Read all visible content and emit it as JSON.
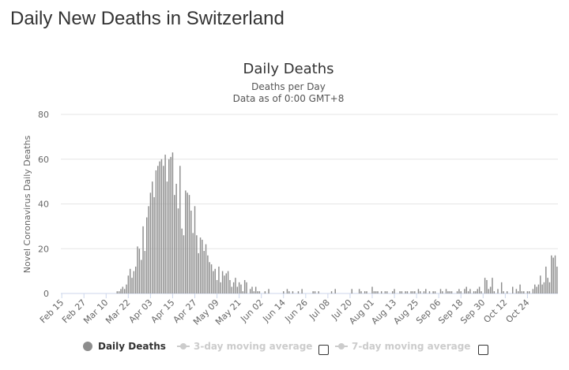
{
  "page": {
    "heading": "Daily New Deaths in Switzerland"
  },
  "chart_data": {
    "type": "bar",
    "title": "Daily Deaths",
    "subtitle_lines": [
      "Deaths per Day",
      "Data as of 0:00 GMT+8"
    ],
    "xlabel": "",
    "ylabel": "Novel Coronavirus Daily Deaths",
    "ylim": [
      0,
      80
    ],
    "yticks": [
      0,
      20,
      40,
      60,
      80
    ],
    "grid": true,
    "bar_color": "#8d8d8d",
    "start_date": "Feb 15",
    "xtick_labels": [
      "Feb 15",
      "Feb 27",
      "Mar 10",
      "Mar 22",
      "Apr 03",
      "Apr 15",
      "Apr 27",
      "May 09",
      "May 21",
      "Jun 02",
      "Jun 14",
      "Jun 26",
      "Jul 08",
      "Jul 20",
      "Aug 01",
      "Aug 13",
      "Aug 25",
      "Sep 06",
      "Sep 18",
      "Sep 30",
      "Oct 12",
      "Oct 24"
    ],
    "series": [
      {
        "name": "Daily Deaths",
        "values": [
          0,
          0,
          0,
          0,
          0,
          0,
          0,
          0,
          0,
          0,
          0,
          0,
          0,
          0,
          0,
          0,
          0,
          0,
          0,
          0,
          0,
          0,
          0,
          0,
          0,
          0,
          0,
          0,
          0,
          0,
          1,
          1,
          2,
          3,
          2,
          4,
          8,
          11,
          7,
          10,
          12,
          21,
          20,
          15,
          30,
          19,
          34,
          39,
          45,
          50,
          43,
          55,
          57,
          59,
          60,
          57,
          62,
          50,
          60,
          61,
          63,
          44,
          49,
          38,
          57,
          29,
          26,
          46,
          45,
          44,
          37,
          27,
          39,
          26,
          18,
          25,
          24,
          19,
          22,
          17,
          14,
          13,
          10,
          11,
          6,
          12,
          5,
          10,
          8,
          9,
          10,
          6,
          3,
          5,
          7,
          3,
          5,
          4,
          1,
          6,
          5,
          0,
          2,
          3,
          1,
          3,
          1,
          1,
          0,
          0,
          1,
          0,
          2,
          0,
          0,
          0,
          0,
          0,
          0,
          0,
          1,
          0,
          2,
          1,
          0,
          1,
          0,
          0,
          1,
          0,
          2,
          0,
          0,
          0,
          0,
          0,
          1,
          1,
          0,
          1,
          0,
          0,
          0,
          0,
          0,
          0,
          1,
          0,
          2,
          0,
          0,
          0,
          0,
          0,
          0,
          0,
          0,
          2,
          0,
          0,
          0,
          2,
          1,
          0,
          1,
          1,
          0,
          0,
          3,
          1,
          1,
          1,
          0,
          1,
          0,
          1,
          1,
          0,
          0,
          1,
          2,
          0,
          0,
          1,
          1,
          0,
          1,
          1,
          0,
          1,
          1,
          1,
          0,
          2,
          1,
          0,
          1,
          2,
          0,
          1,
          0,
          1,
          1,
          0,
          0,
          2,
          1,
          0,
          2,
          1,
          1,
          1,
          0,
          0,
          1,
          2,
          1,
          0,
          2,
          3,
          1,
          2,
          0,
          1,
          1,
          2,
          3,
          1,
          0,
          7,
          6,
          2,
          3,
          7,
          1,
          0,
          2,
          0,
          5,
          1,
          0,
          1,
          0,
          0,
          3,
          0,
          2,
          1,
          4,
          1,
          1,
          0,
          1,
          1,
          0,
          2,
          4,
          3,
          4,
          8,
          4,
          5,
          12,
          7,
          5,
          17,
          16,
          17,
          12
        ]
      }
    ],
    "legend": [
      {
        "label": "Daily Deaths",
        "active": true
      },
      {
        "label": "3-day moving average",
        "active": false
      },
      {
        "label": "7-day moving average",
        "active": false
      }
    ]
  }
}
